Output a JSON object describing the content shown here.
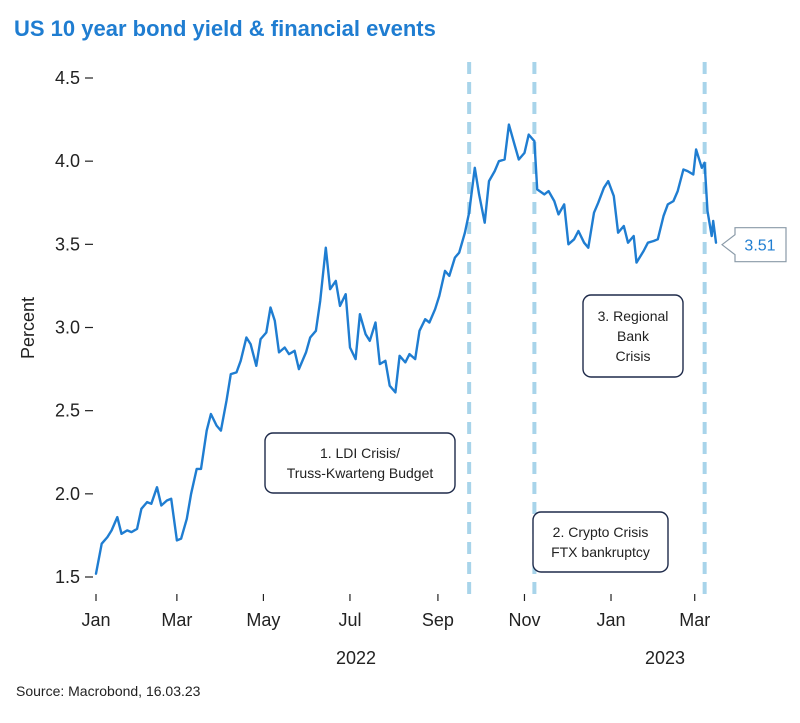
{
  "chart_data": {
    "type": "line",
    "title": "US 10 year bond yield & financial events",
    "xlabel": "",
    "ylabel": "Percent",
    "ylim": [
      1.5,
      4.5
    ],
    "yticks": [
      "1.5",
      "2.0",
      "2.5",
      "3.0",
      "3.5",
      "4.0",
      "4.5"
    ],
    "grid": false,
    "x_tick_labels": [
      "Jan",
      "Mar",
      "May",
      "Jul",
      "Sep",
      "Nov",
      "Jan",
      "Mar"
    ],
    "x_tick_dates": [
      "2022-01-03",
      "2022-03-01",
      "2022-05-01",
      "2022-07-01",
      "2022-09-01",
      "2022-11-01",
      "2023-01-01",
      "2023-03-01"
    ],
    "year_labels": [
      "2022",
      "2023"
    ],
    "xlim": [
      "2022-01-03",
      "2023-03-16"
    ],
    "line_color": "#1f7dd1",
    "event_line_color": "#a8d4ea",
    "series": [
      {
        "points": [
          [
            "2022-01-03",
            1.52
          ],
          [
            "2022-01-07",
            1.7
          ],
          [
            "2022-01-11",
            1.74
          ],
          [
            "2022-01-14",
            1.78
          ],
          [
            "2022-01-18",
            1.86
          ],
          [
            "2022-01-21",
            1.76
          ],
          [
            "2022-01-25",
            1.78
          ],
          [
            "2022-01-28",
            1.77
          ],
          [
            "2022-02-01",
            1.79
          ],
          [
            "2022-02-04",
            1.91
          ],
          [
            "2022-02-08",
            1.95
          ],
          [
            "2022-02-11",
            1.94
          ],
          [
            "2022-02-15",
            2.04
          ],
          [
            "2022-02-18",
            1.93
          ],
          [
            "2022-02-22",
            1.96
          ],
          [
            "2022-02-25",
            1.97
          ],
          [
            "2022-03-01",
            1.72
          ],
          [
            "2022-03-04",
            1.73
          ],
          [
            "2022-03-08",
            1.85
          ],
          [
            "2022-03-11",
            2.0
          ],
          [
            "2022-03-15",
            2.15
          ],
          [
            "2022-03-18",
            2.15
          ],
          [
            "2022-03-22",
            2.38
          ],
          [
            "2022-03-25",
            2.48
          ],
          [
            "2022-03-29",
            2.41
          ],
          [
            "2022-04-01",
            2.38
          ],
          [
            "2022-04-05",
            2.56
          ],
          [
            "2022-04-08",
            2.72
          ],
          [
            "2022-04-12",
            2.73
          ],
          [
            "2022-04-15",
            2.8
          ],
          [
            "2022-04-19",
            2.94
          ],
          [
            "2022-04-22",
            2.9
          ],
          [
            "2022-04-26",
            2.77
          ],
          [
            "2022-04-29",
            2.93
          ],
          [
            "2022-05-03",
            2.97
          ],
          [
            "2022-05-06",
            3.12
          ],
          [
            "2022-05-09",
            3.04
          ],
          [
            "2022-05-12",
            2.85
          ],
          [
            "2022-05-16",
            2.88
          ],
          [
            "2022-05-19",
            2.84
          ],
          [
            "2022-05-23",
            2.86
          ],
          [
            "2022-05-26",
            2.75
          ],
          [
            "2022-05-31",
            2.85
          ],
          [
            "2022-06-03",
            2.94
          ],
          [
            "2022-06-07",
            2.98
          ],
          [
            "2022-06-10",
            3.16
          ],
          [
            "2022-06-14",
            3.48
          ],
          [
            "2022-06-17",
            3.23
          ],
          [
            "2022-06-21",
            3.28
          ],
          [
            "2022-06-24",
            3.13
          ],
          [
            "2022-06-28",
            3.2
          ],
          [
            "2022-07-01",
            2.88
          ],
          [
            "2022-07-05",
            2.81
          ],
          [
            "2022-07-08",
            3.08
          ],
          [
            "2022-07-12",
            2.96
          ],
          [
            "2022-07-15",
            2.92
          ],
          [
            "2022-07-19",
            3.03
          ],
          [
            "2022-07-22",
            2.78
          ],
          [
            "2022-07-26",
            2.8
          ],
          [
            "2022-07-29",
            2.65
          ],
          [
            "2022-08-02",
            2.61
          ],
          [
            "2022-08-05",
            2.83
          ],
          [
            "2022-08-09",
            2.79
          ],
          [
            "2022-08-12",
            2.84
          ],
          [
            "2022-08-16",
            2.81
          ],
          [
            "2022-08-19",
            2.98
          ],
          [
            "2022-08-23",
            3.05
          ],
          [
            "2022-08-26",
            3.03
          ],
          [
            "2022-08-30",
            3.11
          ],
          [
            "2022-09-02",
            3.19
          ],
          [
            "2022-09-06",
            3.34
          ],
          [
            "2022-09-09",
            3.31
          ],
          [
            "2022-09-13",
            3.42
          ],
          [
            "2022-09-16",
            3.45
          ],
          [
            "2022-09-20",
            3.57
          ],
          [
            "2022-09-23",
            3.69
          ],
          [
            "2022-09-27",
            3.96
          ],
          [
            "2022-09-30",
            3.8
          ],
          [
            "2022-10-04",
            3.63
          ],
          [
            "2022-10-07",
            3.88
          ],
          [
            "2022-10-11",
            3.94
          ],
          [
            "2022-10-14",
            4.0
          ],
          [
            "2022-10-18",
            4.01
          ],
          [
            "2022-10-21",
            4.22
          ],
          [
            "2022-10-25",
            4.1
          ],
          [
            "2022-10-28",
            4.01
          ],
          [
            "2022-11-01",
            4.05
          ],
          [
            "2022-11-04",
            4.16
          ],
          [
            "2022-11-08",
            4.12
          ],
          [
            "2022-11-10",
            3.83
          ],
          [
            "2022-11-15",
            3.8
          ],
          [
            "2022-11-18",
            3.82
          ],
          [
            "2022-11-22",
            3.76
          ],
          [
            "2022-11-25",
            3.68
          ],
          [
            "2022-11-29",
            3.74
          ],
          [
            "2022-12-02",
            3.5
          ],
          [
            "2022-12-06",
            3.53
          ],
          [
            "2022-12-09",
            3.58
          ],
          [
            "2022-12-13",
            3.51
          ],
          [
            "2022-12-16",
            3.48
          ],
          [
            "2022-12-20",
            3.69
          ],
          [
            "2022-12-23",
            3.75
          ],
          [
            "2022-12-27",
            3.84
          ],
          [
            "2022-12-30",
            3.88
          ],
          [
            "2023-01-03",
            3.79
          ],
          [
            "2023-01-06",
            3.57
          ],
          [
            "2023-01-10",
            3.61
          ],
          [
            "2023-01-13",
            3.51
          ],
          [
            "2023-01-17",
            3.55
          ],
          [
            "2023-01-19",
            3.39
          ],
          [
            "2023-01-24",
            3.46
          ],
          [
            "2023-01-27",
            3.51
          ],
          [
            "2023-01-31",
            3.52
          ],
          [
            "2023-02-03",
            3.53
          ],
          [
            "2023-02-07",
            3.67
          ],
          [
            "2023-02-10",
            3.74
          ],
          [
            "2023-02-14",
            3.76
          ],
          [
            "2023-02-17",
            3.82
          ],
          [
            "2023-02-21",
            3.95
          ],
          [
            "2023-02-24",
            3.94
          ],
          [
            "2023-02-28",
            3.92
          ],
          [
            "2023-03-02",
            4.07
          ],
          [
            "2023-03-06",
            3.96
          ],
          [
            "2023-03-08",
            3.99
          ],
          [
            "2023-03-10",
            3.7
          ],
          [
            "2023-03-13",
            3.55
          ],
          [
            "2023-03-14",
            3.64
          ],
          [
            "2023-03-16",
            3.51
          ]
        ]
      }
    ],
    "last_value_label": "3.51",
    "event_lines": [
      {
        "date": "2022-09-23"
      },
      {
        "date": "2022-11-08"
      },
      {
        "date": "2023-03-08"
      }
    ],
    "annotations": [
      {
        "lines": [
          "1. LDI Crisis/",
          "Truss-Kwarteng Budget"
        ]
      },
      {
        "lines": [
          "2. Crypto Crisis",
          "FTX bankruptcy"
        ]
      },
      {
        "lines": [
          "3. Regional",
          "Bank",
          "Crisis"
        ]
      }
    ],
    "source": "Source: Macrobond, 16.03.23"
  }
}
